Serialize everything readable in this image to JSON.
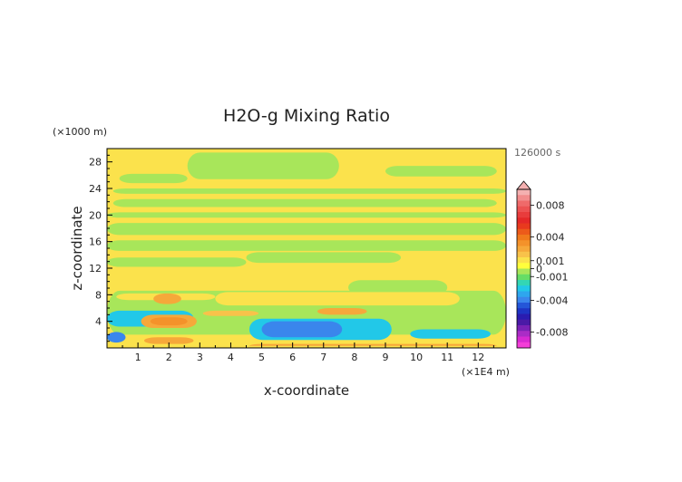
{
  "chart_data": {
    "type": "heatmap",
    "title": "H2O-g Mixing Ratio",
    "xlabel": "x-coordinate",
    "ylabel": "z-coordinate",
    "x_unit": "(×1E4 m)",
    "y_unit": "(×1000 m)",
    "time_label": "126000 s",
    "xlim": [
      0,
      12.9
    ],
    "ylim": [
      0,
      30
    ],
    "x_ticks": [
      "1",
      "2",
      "3",
      "4",
      "5",
      "6",
      "7",
      "8",
      "9",
      "10",
      "11",
      "12"
    ],
    "y_ticks": [
      "4",
      "8",
      "12",
      "16",
      "20",
      "24",
      "28"
    ],
    "background_value": 0.0003,
    "regions": [
      {
        "x": [
          0.4,
          2.6
        ],
        "z": [
          24.8,
          26.2
        ],
        "value": -0.0003
      },
      {
        "x": [
          2.6,
          7.5
        ],
        "z": [
          25.4,
          29.4
        ],
        "value": -0.0003
      },
      {
        "x": [
          9.0,
          12.6
        ],
        "z": [
          25.8,
          27.4
        ],
        "value": -0.0003
      },
      {
        "x": [
          0.2,
          12.9
        ],
        "z": [
          23.2,
          24.0
        ],
        "value": -0.0003
      },
      {
        "x": [
          0.2,
          12.6
        ],
        "z": [
          21.2,
          22.4
        ],
        "value": -0.0003
      },
      {
        "x": [
          0.0,
          12.9
        ],
        "z": [
          19.6,
          20.4
        ],
        "value": -0.0003
      },
      {
        "x": [
          0.0,
          12.9
        ],
        "z": [
          17.0,
          18.8
        ],
        "value": -0.0003
      },
      {
        "x": [
          0.0,
          12.9
        ],
        "z": [
          14.6,
          16.2
        ],
        "value": -0.0003
      },
      {
        "x": [
          0.0,
          4.5
        ],
        "z": [
          12.2,
          13.6
        ],
        "value": -0.0003
      },
      {
        "x": [
          4.5,
          9.5
        ],
        "z": [
          12.8,
          14.4
        ],
        "value": -0.0003
      },
      {
        "x": [
          7.8,
          11.0
        ],
        "z": [
          8.0,
          10.2
        ],
        "value": -0.0003
      },
      {
        "x": [
          0.0,
          12.9
        ],
        "z": [
          2.0,
          8.6
        ],
        "value": -0.0003
      },
      {
        "x": [
          3.5,
          11.4
        ],
        "z": [
          6.4,
          8.4
        ],
        "value": 0.0003
      },
      {
        "x": [
          0.3,
          3.5
        ],
        "z": [
          7.2,
          8.2
        ],
        "value": 0.0004
      },
      {
        "x": [
          0.0,
          2.8
        ],
        "z": [
          3.2,
          5.6
        ],
        "value": -0.0012
      },
      {
        "x": [
          4.6,
          9.2
        ],
        "z": [
          1.2,
          4.4
        ],
        "value": -0.0012
      },
      {
        "x": [
          5.0,
          7.6
        ],
        "z": [
          1.6,
          4.0
        ],
        "value": -0.0018
      },
      {
        "x": [
          9.8,
          12.4
        ],
        "z": [
          1.4,
          2.8
        ],
        "value": -0.0012
      },
      {
        "x": [
          0.0,
          0.6
        ],
        "z": [
          0.8,
          2.4
        ],
        "value": -0.0018
      },
      {
        "x": [
          1.1,
          2.9
        ],
        "z": [
          3.0,
          5.0
        ],
        "value": 0.0009
      },
      {
        "x": [
          1.4,
          2.6
        ],
        "z": [
          3.4,
          4.6
        ],
        "value": 0.0013
      },
      {
        "x": [
          1.5,
          2.4
        ],
        "z": [
          6.6,
          8.2
        ],
        "value": 0.0009
      },
      {
        "x": [
          1.2,
          2.8
        ],
        "z": [
          0.6,
          1.6
        ],
        "value": 0.0009
      },
      {
        "x": [
          3.1,
          4.9
        ],
        "z": [
          4.8,
          5.6
        ],
        "value": 0.0006
      },
      {
        "x": [
          6.8,
          8.4
        ],
        "z": [
          5.0,
          6.0
        ],
        "value": 0.0009
      },
      {
        "x": [
          4.6,
          12.6
        ],
        "z": [
          0.0,
          0.6
        ],
        "value": 0.0009
      },
      {
        "x": [
          0.0,
          12.9
        ],
        "z": [
          0.0,
          0.3
        ],
        "value": 0.0003
      }
    ],
    "colorbar": {
      "tick_labels": [
        {
          "label": "0.008",
          "value": 0.008
        },
        {
          "label": "0.004",
          "value": 0.004
        },
        {
          "label": "0.001",
          "value": 0.001
        },
        {
          "label": "0",
          "value": 0
        },
        {
          "label": "-0.001",
          "value": -0.001
        },
        {
          "label": "-0.004",
          "value": -0.004
        },
        {
          "label": "-0.008",
          "value": -0.008
        }
      ],
      "levels": [
        {
          "value": 0.01,
          "color": "#f4b0b0"
        },
        {
          "value": 0.009,
          "color": "#f28d8d"
        },
        {
          "value": 0.008,
          "color": "#ef6a6a"
        },
        {
          "value": 0.007,
          "color": "#ec5252"
        },
        {
          "value": 0.006,
          "color": "#e83c3c"
        },
        {
          "value": 0.005,
          "color": "#e42828"
        },
        {
          "value": 0.004,
          "color": "#e83a1e"
        },
        {
          "value": 0.003,
          "color": "#ec5a1a"
        },
        {
          "value": 0.002,
          "color": "#f07a1c"
        },
        {
          "value": 0.0015,
          "color": "#f4922a"
        },
        {
          "value": 0.001,
          "color": "#f6a83a"
        },
        {
          "value": 0.0007,
          "color": "#f8c24a"
        },
        {
          "value": 0.0004,
          "color": "#fbe24c"
        },
        {
          "value": 0.0001,
          "color": "#ffff3c"
        },
        {
          "value": -0.0002,
          "color": "#a8e65a"
        },
        {
          "value": -0.0005,
          "color": "#66dd66"
        },
        {
          "value": -0.0008,
          "color": "#33d6b4"
        },
        {
          "value": -0.0011,
          "color": "#22c8e8"
        },
        {
          "value": -0.0015,
          "color": "#2ea6ee"
        },
        {
          "value": -0.002,
          "color": "#3a86ec"
        },
        {
          "value": -0.003,
          "color": "#2456d8"
        },
        {
          "value": -0.004,
          "color": "#1e34c4"
        },
        {
          "value": -0.005,
          "color": "#2a1cb0"
        },
        {
          "value": -0.006,
          "color": "#4a1aa6"
        },
        {
          "value": -0.007,
          "color": "#7a22b6"
        },
        {
          "value": -0.008,
          "color": "#aa2cc6"
        },
        {
          "value": -0.009,
          "color": "#d82ad2"
        },
        {
          "value": -0.01,
          "color": "#f43ed8"
        }
      ]
    }
  }
}
